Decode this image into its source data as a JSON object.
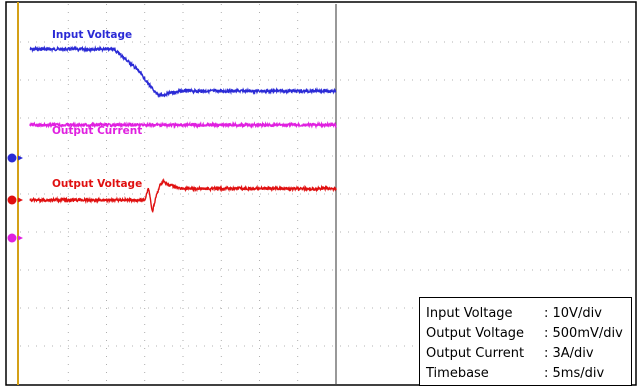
{
  "chart_data": {
    "type": "line",
    "grid": true,
    "series": [
      {
        "name": "Input Voltage",
        "color": "#2b2bd6",
        "x": [
          0,
          6,
          11,
          14,
          15.5,
          16.5,
          17.5,
          18.5,
          20,
          30,
          40
        ],
        "y": [
          4.6,
          4.6,
          4.6,
          4.07,
          3.69,
          3.42,
          3.38,
          3.46,
          3.5,
          3.5,
          3.5
        ]
      },
      {
        "name": "Output Current",
        "color": "#e020e0",
        "x": [
          0,
          40
        ],
        "y": [
          0.5,
          0.5
        ]
      },
      {
        "name": "Output Voltage",
        "color": "#e01010",
        "x": [
          0,
          15,
          15.5,
          16,
          16.5,
          17,
          17.5,
          18,
          20,
          30,
          40
        ],
        "y": [
          0,
          0,
          0.3,
          -0.3,
          0.1,
          0.4,
          0.5,
          0.4,
          0.3,
          0.3,
          0.3
        ]
      }
    ],
    "settings": [
      {
        "name": "Input Voltage",
        "value": ": 10V/div"
      },
      {
        "name": "Output Voltage",
        "value": ": 500mV/div"
      },
      {
        "name": "Output Current",
        "value": ": 3A/div"
      },
      {
        "name": "Timebase",
        "value": ": 5ms/div"
      }
    ]
  }
}
